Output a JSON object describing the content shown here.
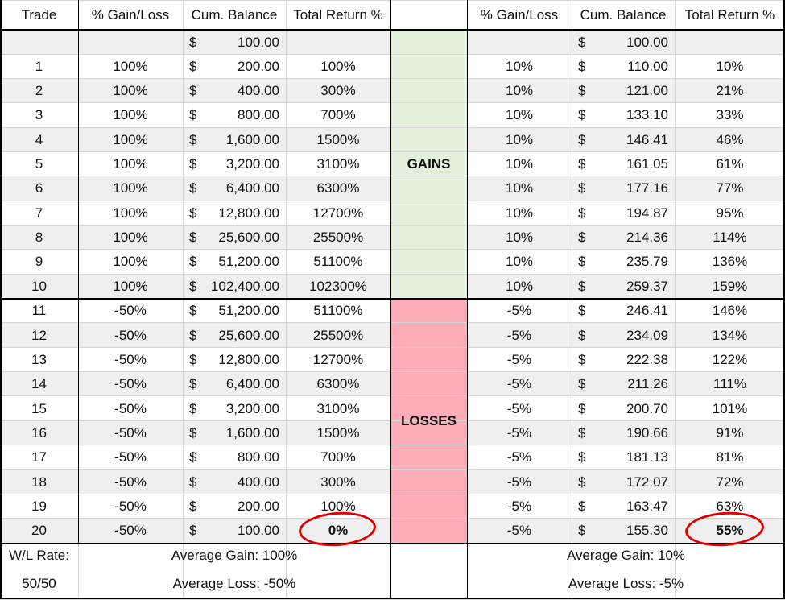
{
  "headers": {
    "trade": "Trade",
    "left": [
      "% Gain/Loss",
      "Cum. Balance",
      "Total Return %"
    ],
    "right": [
      "% Gain/Loss",
      "Cum. Balance",
      "Total Return %"
    ]
  },
  "currency_symbol": "$",
  "start_row": {
    "left_balance": "100.00",
    "right_balance": "100.00"
  },
  "labels": {
    "gains": "GAINS",
    "losses": "LOSSES"
  },
  "rows": [
    {
      "trade": "1",
      "l_pct": "100%",
      "l_bal": "200.00",
      "l_ret": "100%",
      "r_pct": "10%",
      "r_bal": "110.00",
      "r_ret": "10%"
    },
    {
      "trade": "2",
      "l_pct": "100%",
      "l_bal": "400.00",
      "l_ret": "300%",
      "r_pct": "10%",
      "r_bal": "121.00",
      "r_ret": "21%"
    },
    {
      "trade": "3",
      "l_pct": "100%",
      "l_bal": "800.00",
      "l_ret": "700%",
      "r_pct": "10%",
      "r_bal": "133.10",
      "r_ret": "33%"
    },
    {
      "trade": "4",
      "l_pct": "100%",
      "l_bal": "1,600.00",
      "l_ret": "1500%",
      "r_pct": "10%",
      "r_bal": "146.41",
      "r_ret": "46%"
    },
    {
      "trade": "5",
      "l_pct": "100%",
      "l_bal": "3,200.00",
      "l_ret": "3100%",
      "r_pct": "10%",
      "r_bal": "161.05",
      "r_ret": "61%"
    },
    {
      "trade": "6",
      "l_pct": "100%",
      "l_bal": "6,400.00",
      "l_ret": "6300%",
      "r_pct": "10%",
      "r_bal": "177.16",
      "r_ret": "77%"
    },
    {
      "trade": "7",
      "l_pct": "100%",
      "l_bal": "12,800.00",
      "l_ret": "12700%",
      "r_pct": "10%",
      "r_bal": "194.87",
      "r_ret": "95%"
    },
    {
      "trade": "8",
      "l_pct": "100%",
      "l_bal": "25,600.00",
      "l_ret": "25500%",
      "r_pct": "10%",
      "r_bal": "214.36",
      "r_ret": "114%"
    },
    {
      "trade": "9",
      "l_pct": "100%",
      "l_bal": "51,200.00",
      "l_ret": "51100%",
      "r_pct": "10%",
      "r_bal": "235.79",
      "r_ret": "136%"
    },
    {
      "trade": "10",
      "l_pct": "100%",
      "l_bal": "102,400.00",
      "l_ret": "102300%",
      "r_pct": "10%",
      "r_bal": "259.37",
      "r_ret": "159%"
    },
    {
      "trade": "11",
      "l_pct": "-50%",
      "l_bal": "51,200.00",
      "l_ret": "51100%",
      "r_pct": "-5%",
      "r_bal": "246.41",
      "r_ret": "146%"
    },
    {
      "trade": "12",
      "l_pct": "-50%",
      "l_bal": "25,600.00",
      "l_ret": "25500%",
      "r_pct": "-5%",
      "r_bal": "234.09",
      "r_ret": "134%"
    },
    {
      "trade": "13",
      "l_pct": "-50%",
      "l_bal": "12,800.00",
      "l_ret": "12700%",
      "r_pct": "-5%",
      "r_bal": "222.38",
      "r_ret": "122%"
    },
    {
      "trade": "14",
      "l_pct": "-50%",
      "l_bal": "6,400.00",
      "l_ret": "6300%",
      "r_pct": "-5%",
      "r_bal": "211.26",
      "r_ret": "111%"
    },
    {
      "trade": "15",
      "l_pct": "-50%",
      "l_bal": "3,200.00",
      "l_ret": "3100%",
      "r_pct": "-5%",
      "r_bal": "200.70",
      "r_ret": "101%"
    },
    {
      "trade": "16",
      "l_pct": "-50%",
      "l_bal": "1,600.00",
      "l_ret": "1500%",
      "r_pct": "-5%",
      "r_bal": "190.66",
      "r_ret": "91%"
    },
    {
      "trade": "17",
      "l_pct": "-50%",
      "l_bal": "800.00",
      "l_ret": "700%",
      "r_pct": "-5%",
      "r_bal": "181.13",
      "r_ret": "81%"
    },
    {
      "trade": "18",
      "l_pct": "-50%",
      "l_bal": "400.00",
      "l_ret": "300%",
      "r_pct": "-5%",
      "r_bal": "172.07",
      "r_ret": "72%"
    },
    {
      "trade": "19",
      "l_pct": "-50%",
      "l_bal": "200.00",
      "l_ret": "100%",
      "r_pct": "-5%",
      "r_bal": "163.47",
      "r_ret": "63%"
    },
    {
      "trade": "20",
      "l_pct": "-50%",
      "l_bal": "100.00",
      "l_ret": "0%",
      "r_pct": "-5%",
      "r_bal": "155.30",
      "r_ret": "55%"
    }
  ],
  "footer": {
    "wl_label": "W/L Rate:",
    "wl_value": "50/50",
    "left_avg_gain": "Average Gain: 100%",
    "left_avg_loss": "Average Loss: -50%",
    "right_avg_gain": "Average Gain: 10%",
    "right_avg_loss": "Average Loss: -5%"
  },
  "colors": {
    "band_gray": "#efefef",
    "gains_fill": "#e2efda",
    "losses_fill": "#ffacb9",
    "highlight_circle": "#e00000"
  }
}
